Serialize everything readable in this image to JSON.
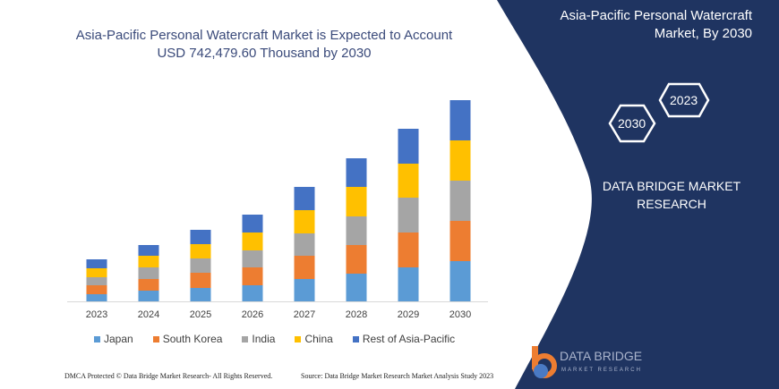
{
  "title_line1": "Asia-Pacific Personal Watercraft Market is Expected to Account",
  "title_line2": "USD 742,479.60 Thousand by 2030",
  "panel": {
    "title_line1": "Asia-Pacific Personal Watercraft",
    "title_line2": "Market, By 2030",
    "hex_a": "2023",
    "hex_b": "2030",
    "brand_line1": "DATA BRIDGE MARKET",
    "brand_line2": "RESEARCH"
  },
  "footer": {
    "copyright": "DMCA Protected © Data Bridge Market Research-  All Rights Reserved.",
    "source": "Source: Data Bridge Market Research Market Analysis Study 2023",
    "logo_name": "DATA BRIDGE",
    "logo_sub": "MARKET RESEARCH"
  },
  "colors": {
    "panel": "#1f3461"
  },
  "chart_data": {
    "type": "bar",
    "stacked": true,
    "categories": [
      "2023",
      "2024",
      "2025",
      "2026",
      "2027",
      "2028",
      "2029",
      "2030"
    ],
    "series": [
      {
        "name": "Japan",
        "color": "#5b9bd5",
        "values": [
          8,
          12,
          15,
          18,
          25,
          31,
          38,
          45
        ]
      },
      {
        "name": "South Korea",
        "color": "#ed7d31",
        "values": [
          10,
          13,
          17,
          20,
          26,
          32,
          39,
          45
        ]
      },
      {
        "name": "India",
        "color": "#a5a5a5",
        "values": [
          9,
          13,
          16,
          19,
          25,
          32,
          39,
          45
        ]
      },
      {
        "name": "China",
        "color": "#ffc000",
        "values": [
          10,
          13,
          16,
          20,
          26,
          33,
          38,
          45
        ]
      },
      {
        "name": "Rest of Asia-Pacific",
        "color": "#4472c4",
        "values": [
          10,
          12,
          16,
          20,
          26,
          32,
          39,
          45
        ]
      }
    ],
    "grid": false,
    "legend": "bottom"
  }
}
